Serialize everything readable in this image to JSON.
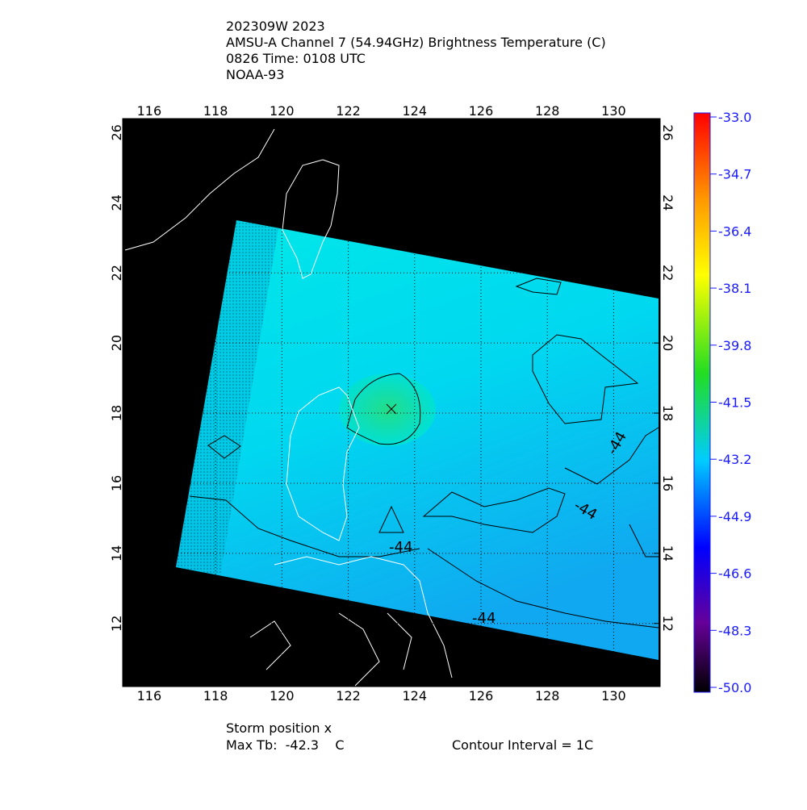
{
  "header": {
    "lines": [
      "202309W 2023",
      "AMSU-A Channel 7 (54.94GHz) Brightness Temperature (C)",
      "0826 Time: 0108 UTC",
      "NOAA-93"
    ]
  },
  "map": {
    "xlim": [
      115.2,
      131.4
    ],
    "ylim": [
      10.2,
      26.4
    ],
    "xticks": [
      116,
      118,
      120,
      122,
      124,
      126,
      128,
      130
    ],
    "yticks": [
      12,
      14,
      16,
      18,
      20,
      22,
      24,
      26
    ],
    "contour_labels": [
      "-44",
      "-44",
      "-44",
      "-44"
    ]
  },
  "colorbar": {
    "lim": [
      -50,
      -33
    ],
    "ticks": [
      {
        "value": -33,
        "label": "-33.0"
      },
      {
        "value": -34.7,
        "label": "-34.7"
      },
      {
        "value": -36.4,
        "label": "-36.4"
      },
      {
        "value": -38.1,
        "label": "-38.1"
      },
      {
        "value": -39.8,
        "label": "-39.8"
      },
      {
        "value": -41.5,
        "label": "-41.5"
      },
      {
        "value": -43.2,
        "label": "-43.2"
      },
      {
        "value": -44.9,
        "label": "-44.9"
      },
      {
        "value": -46.6,
        "label": "-46.6"
      },
      {
        "value": -48.3,
        "label": "-48.3"
      },
      {
        "value": -50,
        "label": "-50.0"
      }
    ]
  },
  "footer": {
    "storm": "Storm position x",
    "max_tb": "Max Tb:  -42.3    C",
    "interval": "Contour Interval = 1C"
  }
}
